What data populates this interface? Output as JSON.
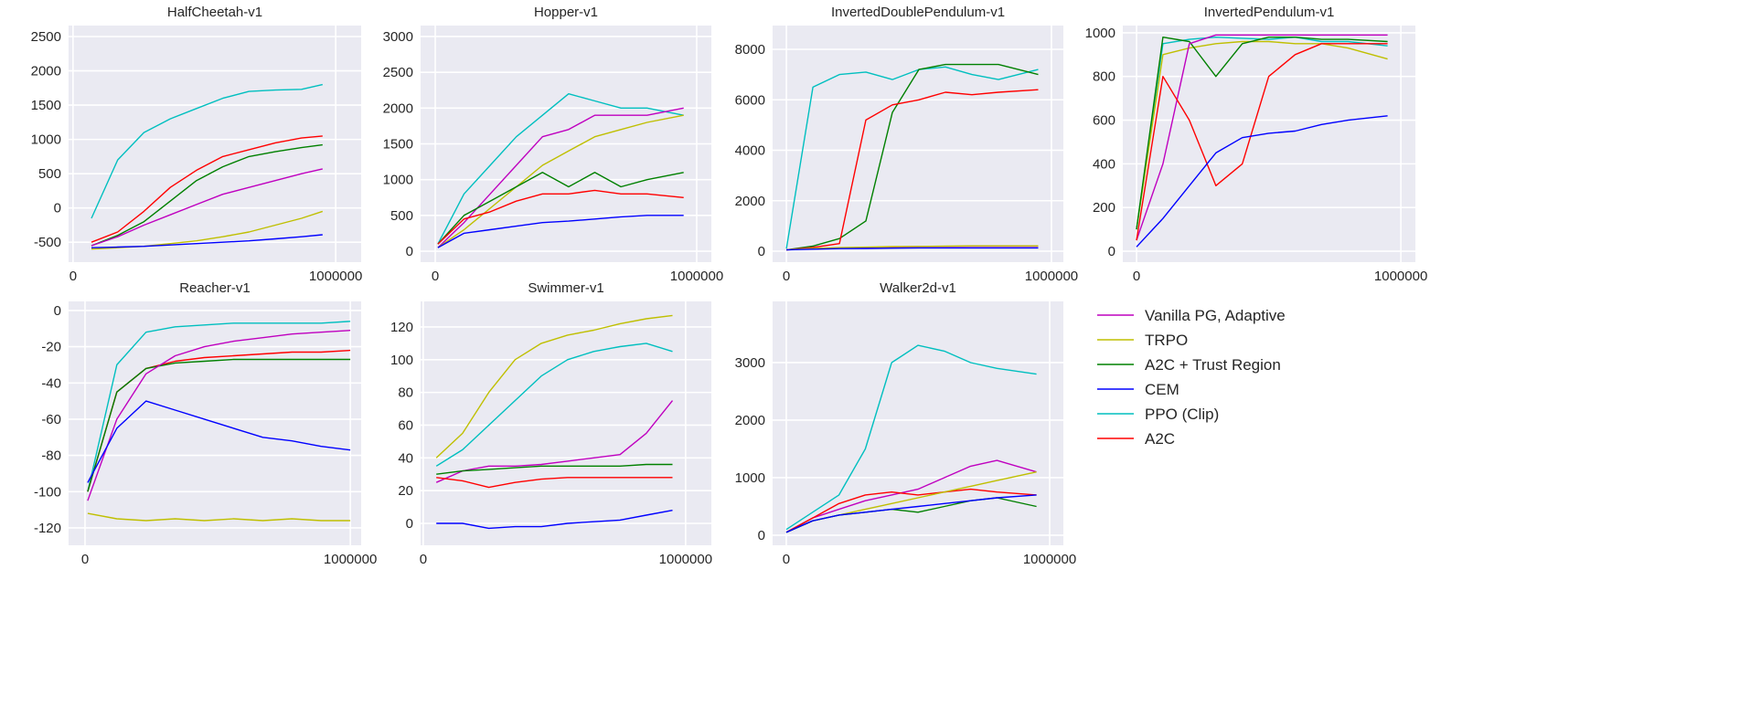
{
  "colors": {
    "background": "#eaeaf2",
    "grid": "#ffffff"
  },
  "legend": [
    {
      "key": "vpg",
      "label": "Vanilla PG, Adaptive",
      "color": "#bf00bf"
    },
    {
      "key": "trpo",
      "label": "TRPO",
      "color": "#bfbf00"
    },
    {
      "key": "a2ctr",
      "label": "A2C + Trust Region",
      "color": "#008000"
    },
    {
      "key": "cem",
      "label": "CEM",
      "color": "#0000ff"
    },
    {
      "key": "ppo",
      "label": "PPO (Clip)",
      "color": "#00bfbf"
    },
    {
      "key": "a2c",
      "label": "A2C",
      "color": "#ff0000"
    }
  ],
  "chart_data": [
    {
      "type": "line",
      "title": "HalfCheetah-v1",
      "xlabel": "",
      "ylabel": "",
      "xlim": [
        -17000,
        1097000
      ],
      "ylim": [
        -790,
        2660
      ],
      "grid": true,
      "xticks": [
        0,
        1000000
      ],
      "xtick_labels": [
        "0",
        "1000000"
      ],
      "yticks": [
        -500,
        0,
        500,
        1000,
        1500,
        2000,
        2500
      ],
      "ytick_labels": [
        "-500",
        "0",
        "500",
        "1000",
        "1500",
        "2000",
        "2500"
      ],
      "x": [
        70000,
        170000,
        270000,
        370000,
        470000,
        570000,
        670000,
        770000,
        870000,
        950000
      ],
      "series": [
        {
          "key": "ppo",
          "values": [
            -150,
            700,
            1100,
            1300,
            1450,
            1600,
            1700,
            1720,
            1730,
            1800
          ]
        },
        {
          "key": "a2c",
          "values": [
            -500,
            -350,
            -50,
            300,
            550,
            750,
            850,
            950,
            1020,
            1050
          ]
        },
        {
          "key": "a2ctr",
          "values": [
            -550,
            -400,
            -200,
            100,
            400,
            600,
            750,
            820,
            880,
            920
          ]
        },
        {
          "key": "vpg",
          "values": [
            -550,
            -420,
            -250,
            -100,
            50,
            200,
            300,
            400,
            500,
            570
          ]
        },
        {
          "key": "trpo",
          "values": [
            -600,
            -580,
            -560,
            -520,
            -480,
            -420,
            -350,
            -250,
            -150,
            -50
          ]
        },
        {
          "key": "cem",
          "values": [
            -580,
            -570,
            -560,
            -540,
            -520,
            -500,
            -480,
            -450,
            -420,
            -390
          ]
        }
      ]
    },
    {
      "type": "line",
      "title": "Hopper-v1",
      "xlabel": "",
      "ylabel": "",
      "xlim": [
        -56000,
        1056000
      ],
      "ylim": [
        -153,
        3153
      ],
      "grid": true,
      "xticks": [
        0,
        1000000
      ],
      "xtick_labels": [
        "0",
        "1000000"
      ],
      "yticks": [
        0,
        500,
        1000,
        1500,
        2000,
        2500,
        3000
      ],
      "ytick_labels": [
        "0",
        "500",
        "1000",
        "1500",
        "2000",
        "2500",
        "3000"
      ],
      "x": [
        10000,
        110000,
        210000,
        310000,
        410000,
        510000,
        610000,
        710000,
        810000,
        950000
      ],
      "series": [
        {
          "key": "ppo",
          "values": [
            100,
            800,
            1200,
            1600,
            1900,
            2200,
            2100,
            2000,
            2000,
            1900
          ]
        },
        {
          "key": "vpg",
          "values": [
            50,
            400,
            800,
            1200,
            1600,
            1700,
            1900,
            1900,
            1900,
            2000
          ]
        },
        {
          "key": "trpo",
          "values": [
            50,
            300,
            600,
            900,
            1200,
            1400,
            1600,
            1700,
            1800,
            1900
          ]
        },
        {
          "key": "a2ctr",
          "values": [
            100,
            500,
            700,
            900,
            1100,
            900,
            1100,
            900,
            1000,
            1100
          ]
        },
        {
          "key": "a2c",
          "values": [
            100,
            450,
            550,
            700,
            800,
            800,
            850,
            800,
            800,
            750
          ]
        },
        {
          "key": "cem",
          "values": [
            50,
            250,
            300,
            350,
            400,
            420,
            450,
            480,
            500,
            500
          ]
        }
      ]
    },
    {
      "type": "line",
      "title": "InvertedDoublePendulum-v1",
      "xlabel": "",
      "ylabel": "",
      "xlim": [
        -52000,
        1045000
      ],
      "ylim": [
        -434,
        8941
      ],
      "grid": true,
      "xticks": [
        0,
        1000000
      ],
      "xtick_labels": [
        "0",
        "1000000"
      ],
      "yticks": [
        0,
        2000,
        4000,
        6000,
        8000
      ],
      "ytick_labels": [
        "0",
        "2000",
        "4000",
        "6000",
        "8000"
      ],
      "x": [
        0,
        100000,
        200000,
        300000,
        400000,
        500000,
        600000,
        700000,
        800000,
        950000
      ],
      "series": [
        {
          "key": "ppo",
          "values": [
            100,
            6500,
            7000,
            7100,
            6800,
            7200,
            7300,
            7000,
            6800,
            7200
          ]
        },
        {
          "key": "a2ctr",
          "values": [
            50,
            200,
            500,
            1200,
            5500,
            7200,
            7400,
            7400,
            7400,
            7000
          ]
        },
        {
          "key": "a2c",
          "values": [
            50,
            150,
            300,
            5200,
            5800,
            6000,
            6300,
            6200,
            6300,
            6400
          ]
        },
        {
          "key": "vpg",
          "values": [
            50,
            100,
            130,
            150,
            170,
            180,
            190,
            200,
            200,
            200
          ]
        },
        {
          "key": "trpo",
          "values": [
            50,
            110,
            140,
            160,
            180,
            190,
            200,
            210,
            210,
            210
          ]
        },
        {
          "key": "cem",
          "values": [
            50,
            80,
            100,
            110,
            120,
            130,
            130,
            130,
            130,
            130
          ]
        }
      ]
    },
    {
      "type": "line",
      "title": "InvertedPendulum-v1",
      "xlabel": "",
      "ylabel": "",
      "xlim": [
        -52000,
        1055000
      ],
      "ylim": [
        -50,
        1033
      ],
      "grid": true,
      "xticks": [
        0,
        1000000
      ],
      "xtick_labels": [
        "0",
        "1000000"
      ],
      "yticks": [
        0,
        200,
        400,
        600,
        800,
        1000
      ],
      "ytick_labels": [
        "0",
        "200",
        "400",
        "600",
        "800",
        "1000"
      ],
      "x": [
        0,
        100000,
        200000,
        300000,
        400000,
        500000,
        600000,
        700000,
        800000,
        950000
      ],
      "series": [
        {
          "key": "ppo",
          "values": [
            100,
            950,
            970,
            980,
            975,
            970,
            980,
            960,
            960,
            940
          ]
        },
        {
          "key": "trpo",
          "values": [
            100,
            900,
            930,
            950,
            960,
            960,
            950,
            950,
            930,
            880
          ]
        },
        {
          "key": "a2ctr",
          "values": [
            100,
            980,
            960,
            800,
            950,
            980,
            980,
            970,
            970,
            960
          ]
        },
        {
          "key": "vpg",
          "values": [
            50,
            400,
            950,
            990,
            990,
            990,
            990,
            990,
            990,
            990
          ]
        },
        {
          "key": "a2c",
          "values": [
            50,
            800,
            600,
            300,
            400,
            800,
            900,
            950,
            950,
            950
          ]
        },
        {
          "key": "cem",
          "values": [
            20,
            150,
            300,
            450,
            520,
            540,
            550,
            580,
            600,
            620
          ]
        }
      ]
    },
    {
      "type": "line",
      "title": "Reacher-v1",
      "xlabel": "",
      "ylabel": "",
      "xlim": [
        -62000,
        1041000
      ],
      "ylim": [
        -129.6,
        5
      ],
      "grid": true,
      "xticks": [
        0,
        1000000
      ],
      "xtick_labels": [
        "0",
        "1000000"
      ],
      "yticks": [
        -120,
        -100,
        -80,
        -60,
        -40,
        -20,
        0
      ],
      "ytick_labels": [
        "-120",
        "-100",
        "-80",
        "-60",
        "-40",
        "-20",
        "0"
      ],
      "x": [
        10000,
        120000,
        230000,
        340000,
        450000,
        560000,
        670000,
        780000,
        890000,
        1000000
      ],
      "series": [
        {
          "key": "ppo",
          "values": [
            -100,
            -30,
            -12,
            -9,
            -8,
            -7,
            -7,
            -7,
            -7,
            -6
          ]
        },
        {
          "key": "a2c",
          "values": [
            -100,
            -45,
            -32,
            -28,
            -26,
            -25,
            -24,
            -23,
            -23,
            -22
          ]
        },
        {
          "key": "a2ctr",
          "values": [
            -100,
            -45,
            -32,
            -29,
            -28,
            -27,
            -27,
            -27,
            -27,
            -27
          ]
        },
        {
          "key": "vpg",
          "values": [
            -105,
            -60,
            -35,
            -25,
            -20,
            -17,
            -15,
            -13,
            -12,
            -11
          ]
        },
        {
          "key": "cem",
          "values": [
            -95,
            -65,
            -50,
            -55,
            -60,
            -65,
            -70,
            -72,
            -75,
            -77
          ]
        },
        {
          "key": "trpo",
          "values": [
            -112,
            -115,
            -116,
            -115,
            -116,
            -115,
            -116,
            -115,
            -116,
            -116
          ]
        }
      ]
    },
    {
      "type": "line",
      "title": "Swimmer-v1",
      "xlabel": "",
      "ylabel": "",
      "xlim": [
        -10000,
        1098000
      ],
      "ylim": [
        -13.4,
        135.6
      ],
      "grid": true,
      "xticks": [
        0,
        1000000
      ],
      "xtick_labels": [
        "0",
        "1000000"
      ],
      "yticks": [
        0,
        20,
        40,
        60,
        80,
        100,
        120
      ],
      "ytick_labels": [
        "0",
        "20",
        "40",
        "60",
        "80",
        "100",
        "120"
      ],
      "x": [
        50000,
        150000,
        250000,
        350000,
        450000,
        550000,
        650000,
        750000,
        850000,
        950000
      ],
      "series": [
        {
          "key": "trpo",
          "values": [
            40,
            55,
            80,
            100,
            110,
            115,
            118,
            122,
            125,
            127
          ]
        },
        {
          "key": "ppo",
          "values": [
            35,
            45,
            60,
            75,
            90,
            100,
            105,
            108,
            110,
            105
          ]
        },
        {
          "key": "vpg",
          "values": [
            25,
            32,
            35,
            35,
            36,
            38,
            40,
            42,
            55,
            75
          ]
        },
        {
          "key": "a2ctr",
          "values": [
            30,
            32,
            33,
            34,
            35,
            35,
            35,
            35,
            36,
            36
          ]
        },
        {
          "key": "a2c",
          "values": [
            28,
            26,
            22,
            25,
            27,
            28,
            28,
            28,
            28,
            28
          ]
        },
        {
          "key": "cem",
          "values": [
            0,
            0,
            -3,
            -2,
            -2,
            0,
            1,
            2,
            5,
            8
          ]
        }
      ]
    },
    {
      "type": "line",
      "title": "Walker2d-v1",
      "xlabel": "",
      "ylabel": "",
      "xlim": [
        -52000,
        1052000
      ],
      "ylim": [
        -175,
        4063
      ],
      "grid": true,
      "xticks": [
        0,
        1000000
      ],
      "xtick_labels": [
        "0",
        "1000000"
      ],
      "yticks": [
        0,
        1000,
        2000,
        3000
      ],
      "ytick_labels": [
        "0",
        "1000",
        "2000",
        "3000"
      ],
      "x": [
        0,
        100000,
        200000,
        300000,
        400000,
        500000,
        600000,
        700000,
        800000,
        950000
      ],
      "series": [
        {
          "key": "ppo",
          "values": [
            100,
            400,
            700,
            1500,
            3000,
            3300,
            3200,
            3000,
            2900,
            2800
          ]
        },
        {
          "key": "vpg",
          "values": [
            50,
            300,
            450,
            600,
            700,
            800,
            1000,
            1200,
            1300,
            1100
          ]
        },
        {
          "key": "a2c",
          "values": [
            50,
            300,
            550,
            700,
            750,
            700,
            750,
            800,
            750,
            700
          ]
        },
        {
          "key": "trpo",
          "values": [
            50,
            250,
            350,
            450,
            550,
            650,
            750,
            850,
            950,
            1100
          ]
        },
        {
          "key": "a2ctr",
          "values": [
            50,
            250,
            350,
            400,
            450,
            400,
            500,
            600,
            650,
            500
          ]
        },
        {
          "key": "cem",
          "values": [
            50,
            250,
            350,
            400,
            450,
            500,
            550,
            600,
            650,
            700
          ]
        }
      ]
    }
  ]
}
